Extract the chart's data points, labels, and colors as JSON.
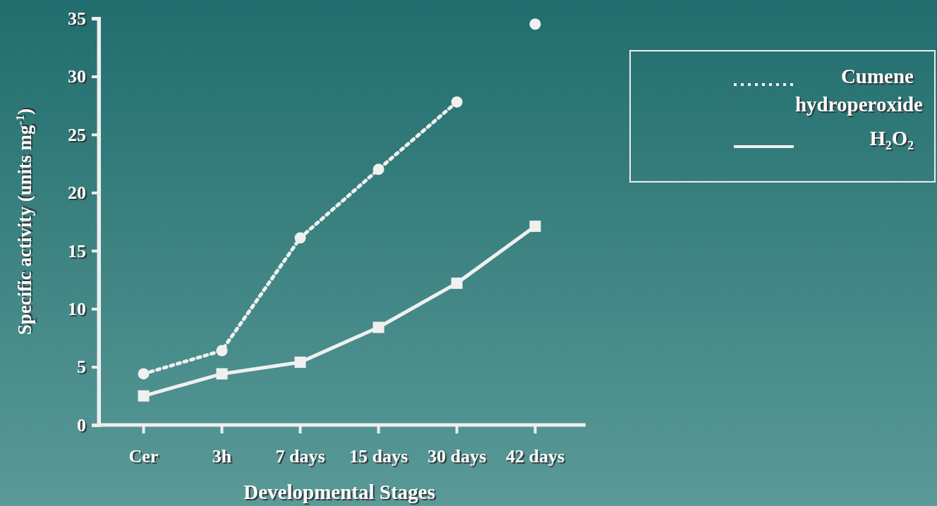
{
  "chart_data": {
    "type": "line",
    "xlabel": "Developmental Stages",
    "ylabel": "Specific activity (units mg$^{-1}$)",
    "categories": [
      "Cer",
      "3h",
      "7 days",
      "15 days",
      "30 days",
      "42 days"
    ],
    "ylim": [
      0,
      35
    ],
    "yticks": [
      0,
      5,
      10,
      15,
      20,
      25,
      30,
      35
    ],
    "grid": false,
    "legend": "top right",
    "series": [
      {
        "name": "Cumene hydroperoxide",
        "color": "#f0f0f0",
        "marker": "circle",
        "line_style": "dotted",
        "values": [
          4.4,
          6.4,
          16.1,
          22.0,
          27.8,
          null
        ]
      },
      {
        "type": "scatter",
        "color": "#f0f0f0",
        "marker": "circle",
        "values": [
          null,
          null,
          null,
          null,
          null,
          34.5
        ]
      },
      {
        "name": "H₂O₂",
        "color": "#f0f0f0",
        "marker": "square",
        "line_style": "solid",
        "values": [
          2.5,
          4.4,
          5.4,
          8.4,
          12.2,
          17.1
        ]
      }
    ]
  }
}
